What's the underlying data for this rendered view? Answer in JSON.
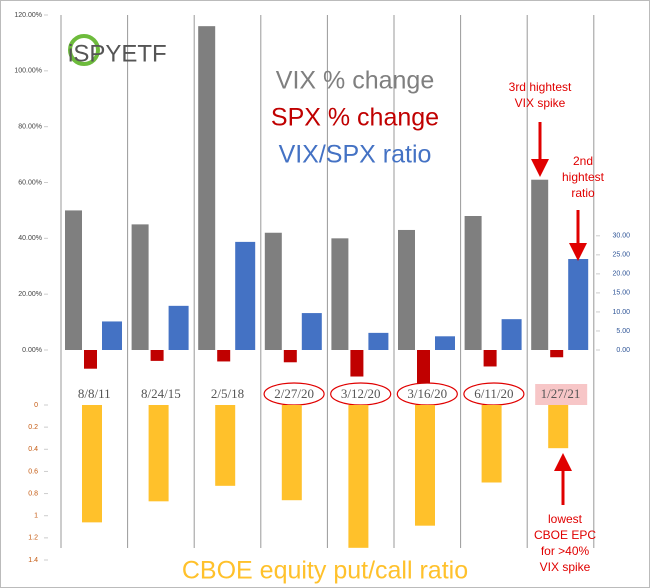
{
  "chart_data": [
    {
      "type": "bar",
      "logo": "iSPYETF",
      "categories": [
        "8/8/11",
        "8/24/15",
        "2/5/18",
        "2/27/20",
        "3/12/20",
        "3/16/20",
        "6/11/20",
        "1/27/21"
      ],
      "series": [
        {
          "name": "VIX % change",
          "color": "#7f7f7f",
          "values": [
            50,
            45,
            116,
            42,
            40,
            43,
            48,
            61
          ]
        },
        {
          "name": "SPX % change",
          "color": "#c00000",
          "values": [
            -6.7,
            -3.9,
            -4.1,
            -4.4,
            -9.5,
            -12,
            -5.9,
            -2.6
          ]
        },
        {
          "name": "VIX/SPX ratio",
          "color": "#4472c4",
          "axis": "y2",
          "values": [
            7.5,
            11.6,
            28.4,
            9.7,
            4.5,
            3.6,
            8.1,
            23.9
          ]
        }
      ],
      "ylim": [
        -15,
        120
      ],
      "yticks": [
        {
          "value": 0,
          "label": "0.00%"
        },
        {
          "value": 20,
          "label": "20.00%"
        },
        {
          "value": 40,
          "label": "40.00%"
        },
        {
          "value": 60,
          "label": "60.00%"
        },
        {
          "value": 80,
          "label": "80.00%"
        },
        {
          "value": 100,
          "label": "100.00%"
        },
        {
          "value": 120,
          "label": "120.00%"
        }
      ],
      "y2lim": [
        -11,
        88
      ],
      "y2ticks": [
        {
          "value": 0,
          "label": "0.00"
        },
        {
          "value": 5,
          "label": "5.00"
        },
        {
          "value": 10,
          "label": "10.00"
        },
        {
          "value": 15,
          "label": "15.00"
        },
        {
          "value": 20,
          "label": "20.00"
        },
        {
          "value": 25,
          "label": "25.00"
        },
        {
          "value": 30,
          "label": "30.00"
        }
      ],
      "annotations": [
        [
          "3rd hightest",
          "VIX spike"
        ],
        [
          "2nd",
          "hightest",
          "ratio"
        ],
        [
          "lowest",
          "CBOE EPC",
          "for >40%",
          "VIX spike"
        ]
      ]
    },
    {
      "type": "bar",
      "title": "CBOE equity put/call ratio",
      "color": "#ffc12b",
      "values": [
        1.06,
        0.87,
        0.73,
        0.86,
        1.29,
        1.09,
        0.7,
        0.39
      ],
      "ylim": [
        0,
        1.4
      ],
      "inverted": true,
      "yticks": [
        0,
        0.2,
        0.4,
        0.6,
        0.8,
        1,
        1.2,
        1.4
      ]
    }
  ]
}
